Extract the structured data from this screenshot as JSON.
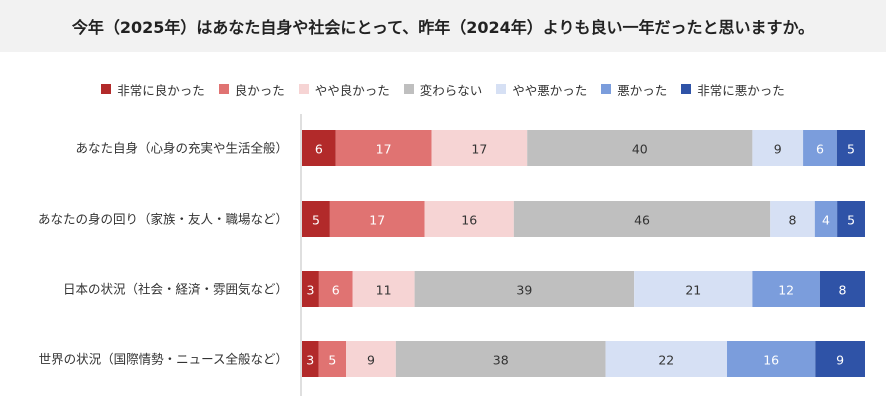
{
  "title": "今年（2025年）はあなた自身や社会にとって、昨年（2024年）よりも良い一年だったと思いますか。",
  "chart_data": {
    "type": "bar",
    "orientation": "horizontal",
    "stacked": "100%",
    "categories": [
      "あなた自身（心身の充実や生活全般）",
      "あなたの身の回り（家族・友人・職場など）",
      "日本の状況（社会・経済・雰囲気など）",
      "世界の状況（国際情勢・ニュース全般など）"
    ],
    "series": [
      {
        "name": "非常に良かった",
        "color": "#b22a2a",
        "values": [
          6,
          5,
          3,
          3
        ]
      },
      {
        "name": "良かった",
        "color": "#e07372",
        "values": [
          17,
          17,
          6,
          5
        ]
      },
      {
        "name": "やや良かった",
        "color": "#f6d4d4",
        "values": [
          17,
          16,
          11,
          9
        ]
      },
      {
        "name": "変わらない",
        "color": "#bfbfbf",
        "values": [
          40,
          46,
          39,
          38
        ]
      },
      {
        "name": "やや悪かった",
        "color": "#d6e0f4",
        "values": [
          9,
          8,
          21,
          22
        ]
      },
      {
        "name": "悪かった",
        "color": "#7b9ddc",
        "values": [
          6,
          4,
          12,
          16
        ]
      },
      {
        "name": "非常に悪かった",
        "color": "#2f53a7",
        "values": [
          5,
          5,
          8,
          9
        ]
      }
    ],
    "legend_position": "top",
    "grid": false
  }
}
